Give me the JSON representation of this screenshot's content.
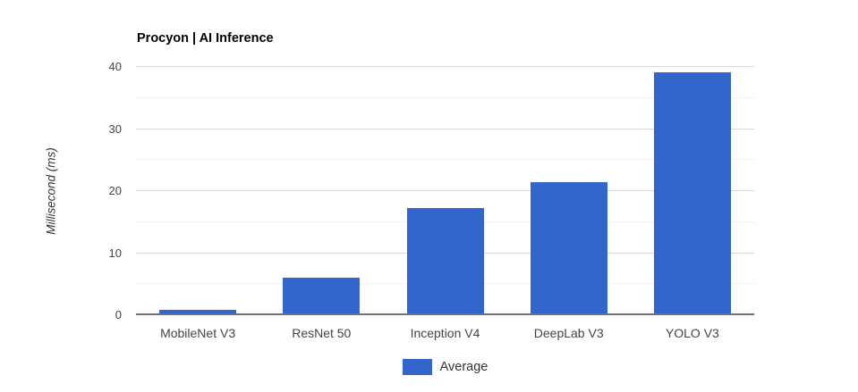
{
  "title": "Procyon | AI Inference",
  "y_axis": {
    "label": "Millisecond (ms)"
  },
  "legend": {
    "label": "Average",
    "color": "#3366cc"
  },
  "colors": {
    "bar": "#3366cc",
    "gridline_major": "#d9d9d9",
    "gridline_minor": "#f2f2f2",
    "baseline": "#717171"
  },
  "chart_data": {
    "type": "bar",
    "title": "Procyon | AI Inference",
    "categories": [
      "MobileNet V3",
      "ResNet 50",
      "Inception V4",
      "DeepLab V3",
      "YOLO V3"
    ],
    "series": [
      {
        "name": "Average",
        "values": [
          0.8,
          6.0,
          17.2,
          21.5,
          39.2
        ]
      }
    ],
    "xlabel": "",
    "ylabel": "Millisecond (ms)",
    "ylim": [
      0,
      40
    ],
    "yticks": [
      0,
      10,
      20,
      30,
      40
    ],
    "minor_yticks": [
      5,
      15,
      25,
      35
    ],
    "grid": true,
    "legend_position": "bottom",
    "bar_color": "#3366cc"
  }
}
